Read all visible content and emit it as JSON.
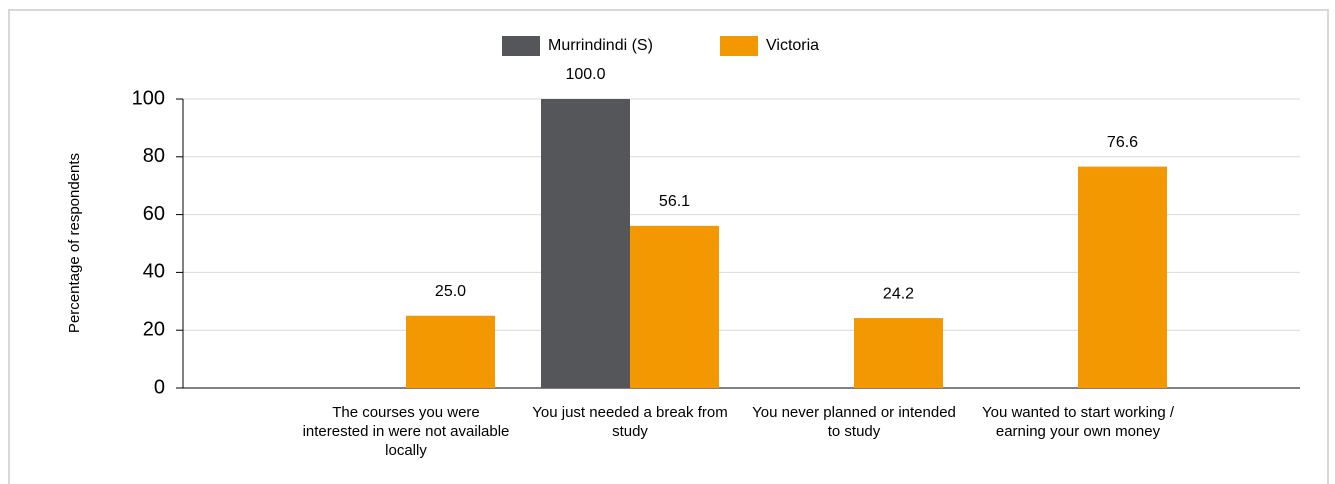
{
  "chart_data": {
    "type": "bar",
    "y_label": "Percentage of respondents",
    "categories": [
      "The courses you were interested in were not available locally",
      "You just needed a break from study",
      "You never planned or intended to study",
      "You wanted to start working / earning your own money"
    ],
    "series": [
      {
        "name": "Murrindindi (S)",
        "color": "#54565a",
        "values": [
          null,
          100,
          null,
          null
        ],
        "value_labels": [
          null,
          "100.0",
          null,
          null
        ]
      },
      {
        "name": "Victoria",
        "color": "#f39800",
        "values": [
          25,
          56.1,
          24.2,
          76.6
        ],
        "value_labels": [
          "25.0",
          "56.1",
          "24.2",
          "76.6"
        ]
      }
    ],
    "ylim": [
      0,
      100
    ],
    "yticks": [
      0,
      20,
      40,
      60,
      80,
      100
    ],
    "grid": true,
    "legend": "top"
  }
}
